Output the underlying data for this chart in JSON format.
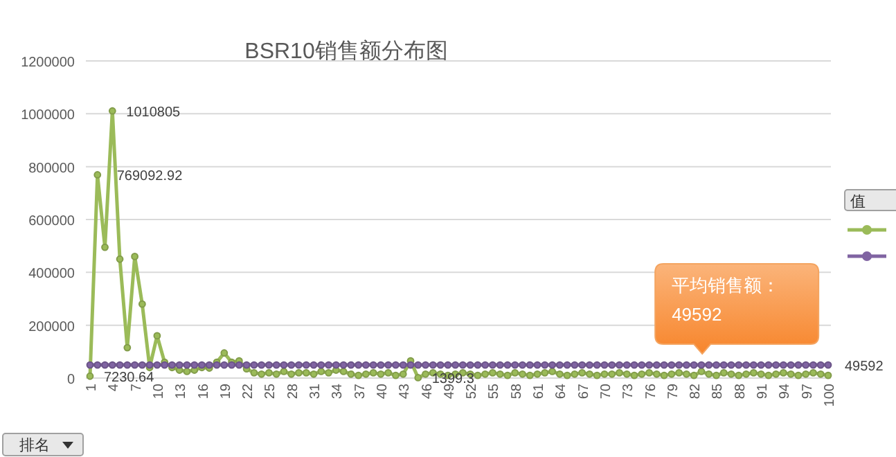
{
  "chart_data": {
    "type": "line",
    "title": "BSR10销售额分布图",
    "legend_title": "值",
    "grid": "y",
    "marker": "circle",
    "line_style": "solid",
    "categories": [
      "1",
      null,
      null,
      "4",
      null,
      null,
      "7",
      null,
      null,
      "10",
      null,
      null,
      "13",
      null,
      null,
      "16",
      null,
      null,
      "19",
      null,
      null,
      "22",
      null,
      null,
      "25",
      null,
      null,
      "28",
      null,
      null,
      "31",
      null,
      null,
      "34",
      null,
      null,
      "37",
      null,
      null,
      "40",
      null,
      null,
      "43",
      null,
      null,
      "46",
      null,
      null,
      "49",
      null,
      null,
      "52",
      null,
      null,
      "55",
      null,
      null,
      "58",
      null,
      null,
      "61",
      null,
      null,
      "64",
      null,
      null,
      "67",
      null,
      null,
      "70",
      null,
      null,
      "73",
      null,
      null,
      "76",
      null,
      null,
      "79",
      null,
      null,
      "82",
      null,
      null,
      "85",
      null,
      null,
      "88",
      null,
      null,
      "91",
      null,
      null,
      "94",
      null,
      null,
      "97",
      null,
      null,
      "100"
    ],
    "ylim": [
      0,
      1200000
    ],
    "yticks": [
      0,
      200000,
      400000,
      600000,
      800000,
      1000000,
      1200000
    ],
    "series": [
      {
        "color": "#9bbb59",
        "values": [
          7230.64,
          769092.92,
          495000,
          1010805,
          450000,
          115000,
          460000,
          280000,
          40000,
          160000,
          60000,
          40000,
          30000,
          25000,
          30000,
          40000,
          38000,
          60000,
          95000,
          60000,
          65000,
          35000,
          20000,
          15000,
          20000,
          15000,
          25000,
          15000,
          20000,
          20000,
          15000,
          25000,
          20000,
          30000,
          25000,
          15000,
          10000,
          15000,
          20000,
          15000,
          20000,
          10000,
          15000,
          65000,
          1399.3,
          15000,
          20000,
          15000,
          10000,
          15000,
          20000,
          15000,
          10000,
          15000,
          20000,
          15000,
          10000,
          20000,
          15000,
          10000,
          15000,
          20000,
          25000,
          15000,
          10000,
          15000,
          20000,
          15000,
          10000,
          15000,
          15000,
          20000,
          15000,
          10000,
          15000,
          20000,
          15000,
          10000,
          15000,
          20000,
          15000,
          10000,
          25000,
          15000,
          10000,
          20000,
          15000,
          10000,
          15000,
          20000,
          15000,
          10000,
          15000,
          20000,
          15000,
          10000,
          15000,
          20000,
          15000,
          10000
        ],
        "value_labels": [
          "7230.64",
          "769092.92",
          null,
          "1010805",
          null,
          null,
          null,
          null,
          null,
          null,
          null,
          null,
          null,
          null,
          null,
          null,
          null,
          null,
          null,
          null,
          null,
          null,
          null,
          null,
          null,
          null,
          null,
          null,
          null,
          null,
          null,
          null,
          null,
          null,
          null,
          null,
          null,
          null,
          null,
          null,
          null,
          null,
          null,
          null,
          "1399.3",
          null,
          null,
          null,
          null,
          null,
          null,
          null,
          null,
          null,
          null,
          null,
          null,
          null,
          null,
          null,
          null,
          null,
          null,
          null,
          null,
          null,
          null,
          null,
          null,
          null,
          null,
          null,
          null,
          null,
          null,
          null,
          null,
          null,
          null,
          null,
          null,
          null,
          null,
          null,
          null,
          null,
          null,
          null,
          null,
          null,
          null,
          null,
          null,
          null,
          null,
          null,
          null,
          null,
          null,
          null
        ]
      },
      {
        "color": "#8064a2",
        "values": [
          49592,
          49592,
          49592,
          49592,
          49592,
          49592,
          49592,
          49592,
          49592,
          49592,
          49592,
          49592,
          49592,
          49592,
          49592,
          49592,
          49592,
          49592,
          49592,
          49592,
          49592,
          49592,
          49592,
          49592,
          49592,
          49592,
          49592,
          49592,
          49592,
          49592,
          49592,
          49592,
          49592,
          49592,
          49592,
          49592,
          49592,
          49592,
          49592,
          49592,
          49592,
          49592,
          49592,
          49592,
          49592,
          49592,
          49592,
          49592,
          49592,
          49592,
          49592,
          49592,
          49592,
          49592,
          49592,
          49592,
          49592,
          49592,
          49592,
          49592,
          49592,
          49592,
          49592,
          49592,
          49592,
          49592,
          49592,
          49592,
          49592,
          49592,
          49592,
          49592,
          49592,
          49592,
          49592,
          49592,
          49592,
          49592,
          49592,
          49592,
          49592,
          49592,
          49592,
          49592,
          49592,
          49592,
          49592,
          49592,
          49592,
          49592,
          49592,
          49592,
          49592,
          49592,
          49592,
          49592,
          49592,
          49592,
          49592,
          49592
        ],
        "value_labels": [
          null,
          null,
          null,
          null,
          null,
          null,
          null,
          null,
          null,
          null,
          null,
          null,
          null,
          null,
          null,
          null,
          null,
          null,
          null,
          null,
          null,
          null,
          null,
          null,
          null,
          null,
          null,
          null,
          null,
          null,
          null,
          null,
          null,
          null,
          null,
          null,
          null,
          null,
          null,
          null,
          null,
          null,
          null,
          null,
          null,
          null,
          null,
          null,
          null,
          null,
          null,
          null,
          null,
          null,
          null,
          null,
          null,
          null,
          null,
          null,
          null,
          null,
          null,
          null,
          null,
          null,
          null,
          null,
          null,
          null,
          null,
          null,
          null,
          null,
          null,
          null,
          null,
          null,
          null,
          null,
          null,
          null,
          null,
          null,
          null,
          null,
          null,
          null,
          null,
          null,
          null,
          null,
          null,
          null,
          null,
          null,
          null,
          null,
          null,
          "49592"
        ]
      }
    ],
    "annotations": [
      {
        "text": "平均销售额：\n49592",
        "x": "82",
        "y": 49592
      },
      "排名"
    ]
  }
}
